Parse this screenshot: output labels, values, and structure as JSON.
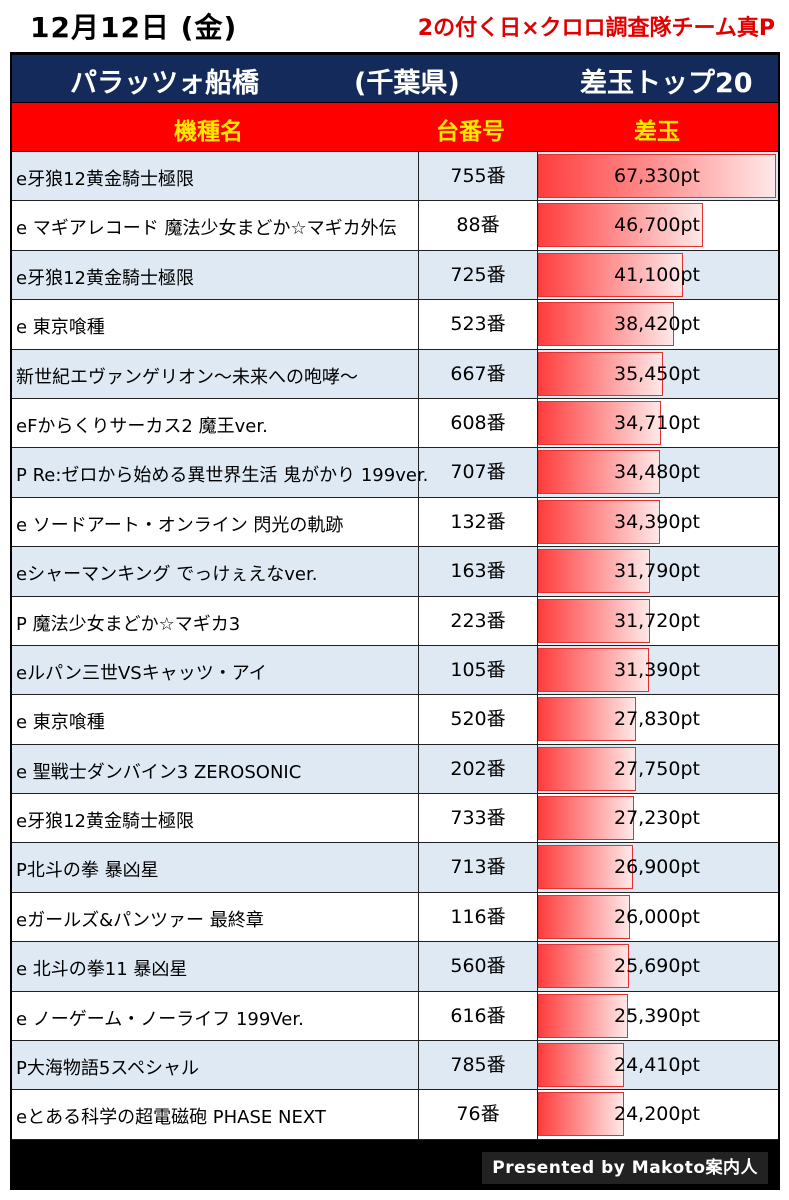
{
  "header": {
    "date": "12月12日 (金)",
    "tagline": "2の付く日×クロロ調査隊チーム真P"
  },
  "title": {
    "store": "パラッツォ船橋",
    "prefecture": "(千葉県)",
    "ranking": "差玉トップ20"
  },
  "columns": {
    "name": "機種名",
    "number": "台番号",
    "diff": "差玉"
  },
  "chart_data": {
    "type": "table",
    "max_value": 67330,
    "rows": [
      {
        "name": "e牙狼12黄金騎士極限",
        "number": "755番",
        "value": 67330,
        "label": "67,330pt"
      },
      {
        "name": "e マギアレコード 魔法少女まどか☆マギカ外伝",
        "number": "88番",
        "value": 46700,
        "label": "46,700pt"
      },
      {
        "name": "e牙狼12黄金騎士極限",
        "number": "725番",
        "value": 41100,
        "label": "41,100pt"
      },
      {
        "name": "e 東京喰種",
        "number": "523番",
        "value": 38420,
        "label": "38,420pt"
      },
      {
        "name": "新世紀エヴァンゲリオン〜未来への咆哮〜",
        "number": "667番",
        "value": 35450,
        "label": "35,450pt"
      },
      {
        "name": "eFからくりサーカス2 魔王ver.",
        "number": "608番",
        "value": 34710,
        "label": "34,710pt"
      },
      {
        "name": "P Re:ゼロから始める異世界生活 鬼がかり 199ver.",
        "number": "707番",
        "value": 34480,
        "label": "34,480pt"
      },
      {
        "name": "e ソードアート・オンライン 閃光の軌跡",
        "number": "132番",
        "value": 34390,
        "label": "34,390pt"
      },
      {
        "name": "eシャーマンキング でっけぇえなver.",
        "number": "163番",
        "value": 31790,
        "label": "31,790pt"
      },
      {
        "name": "P 魔法少女まどか☆マギカ3",
        "number": "223番",
        "value": 31720,
        "label": "31,720pt"
      },
      {
        "name": "eルパン三世VSキャッツ・アイ",
        "number": "105番",
        "value": 31390,
        "label": "31,390pt"
      },
      {
        "name": "e 東京喰種",
        "number": "520番",
        "value": 27830,
        "label": "27,830pt"
      },
      {
        "name": "e 聖戦士ダンバイン3 ZEROSONIC",
        "number": "202番",
        "value": 27750,
        "label": "27,750pt"
      },
      {
        "name": "e牙狼12黄金騎士極限",
        "number": "733番",
        "value": 27230,
        "label": "27,230pt"
      },
      {
        "name": "P北斗の拳 暴凶星",
        "number": "713番",
        "value": 26900,
        "label": "26,900pt"
      },
      {
        "name": "eガールズ&パンツァー 最終章",
        "number": "116番",
        "value": 26000,
        "label": "26,000pt"
      },
      {
        "name": "e 北斗の拳11 暴凶星",
        "number": "560番",
        "value": 25690,
        "label": "25,690pt"
      },
      {
        "name": "e ノーゲーム・ノーライフ 199Ver.",
        "number": "616番",
        "value": 25390,
        "label": "25,390pt"
      },
      {
        "name": "P大海物語5スペシャル",
        "number": "785番",
        "value": 24410,
        "label": "24,410pt"
      },
      {
        "name": "eとある科学の超電磁砲 PHASE NEXT",
        "number": "76番",
        "value": 24200,
        "label": "24,200pt"
      }
    ]
  },
  "footer": {
    "credit": "Presented by Makoto案内人"
  },
  "colors": {
    "title_bg": "#142a5a",
    "header_bg": "#ff0000",
    "header_text": "#ffe800",
    "row_alt": "#dfe9f4",
    "bar_red": "#ff3d3d",
    "tagline": "#e00000"
  }
}
